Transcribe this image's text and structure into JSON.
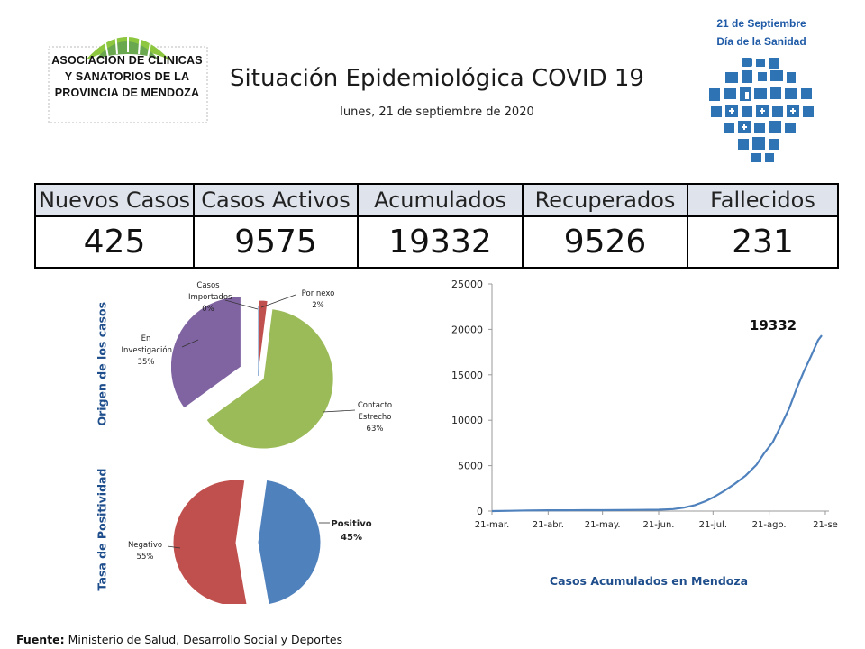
{
  "header": {
    "logo_lines": [
      "ASOCIACION DE CLINICAS",
      "Y SANATORIOS DE LA",
      "PROVINCIA DE MENDOZA"
    ],
    "title": "Situación Epidemiológica COVID 19",
    "date": "lunes, 21 de septiembre de 2020",
    "badge_line1": "21 de Septiembre",
    "badge_line2": "Día de la Sanidad"
  },
  "stats": {
    "headers": [
      "Nuevos Casos",
      "Casos Activos",
      "Acumulados",
      "Recuperados",
      "Fallecidos"
    ],
    "values": [
      "425",
      "9575",
      "19332",
      "9526",
      "231"
    ]
  },
  "colors": {
    "green": "#9bbb59",
    "purple": "#8064a2",
    "red": "#c0504d",
    "blue": "#4f81bd",
    "axis_label": "#1f4e8c",
    "stats_header_bg": "#dfe4ec"
  },
  "labels": {
    "origen": "Origen de los casos",
    "positividad": "Tasa de Positividad"
  },
  "chart_data": [
    {
      "type": "pie",
      "title": "Origen de los casos",
      "slices": [
        {
          "label": "Casos Importados",
          "value": 0,
          "display": "0%",
          "color": "#4f81bd"
        },
        {
          "label": "Por nexo",
          "value": 2,
          "display": "2%",
          "color": "#c0504d"
        },
        {
          "label": "Contacto Estrecho",
          "value": 63,
          "display": "63%",
          "color": "#9bbb59"
        },
        {
          "label": "En Investigación",
          "value": 35,
          "display": "35%",
          "color": "#8064a2"
        }
      ]
    },
    {
      "type": "pie",
      "title": "Tasa de Positividad",
      "slices": [
        {
          "label": "Positivo",
          "value": 45,
          "display": "45%",
          "color": "#4f81bd"
        },
        {
          "label": "Negativo",
          "value": 55,
          "display": "55%",
          "color": "#c0504d"
        }
      ]
    },
    {
      "type": "line",
      "title": "Casos Acumulados en Mendoza",
      "annotation": "19332",
      "xlabel": "",
      "ylabel": "",
      "ylim": [
        0,
        25000
      ],
      "yticks": [
        0,
        5000,
        10000,
        15000,
        20000,
        25000
      ],
      "xticks": [
        "21-mar.",
        "21-abr.",
        "21-may.",
        "21-jun.",
        "21-jul.",
        "21-ago.",
        "21-se"
      ],
      "series": [
        {
          "name": "Casos Acumulados",
          "color": "#4f81bd",
          "x": [
            0,
            10,
            20,
            31,
            41,
            51,
            61,
            71,
            81,
            92,
            100,
            106,
            112,
            118,
            122,
            128,
            134,
            140,
            146,
            150,
            155,
            160,
            164,
            168,
            172,
            176,
            180,
            182
          ],
          "y": [
            3,
            30,
            70,
            85,
            90,
            95,
            100,
            110,
            130,
            150,
            220,
            380,
            650,
            1100,
            1500,
            2200,
            3000,
            3900,
            5100,
            6300,
            7600,
            9600,
            11300,
            13400,
            15300,
            17000,
            18800,
            19332
          ]
        }
      ]
    }
  ],
  "footer": {
    "label": "Fuente:",
    "text": "Ministerio de Salud, Desarrollo Social y Deportes"
  }
}
